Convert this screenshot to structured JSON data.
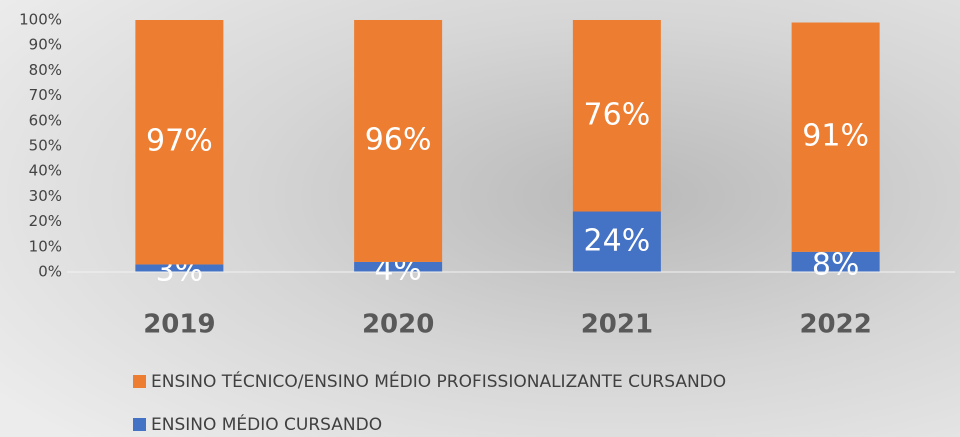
{
  "chart_data": {
    "type": "stacked_bar",
    "categories": [
      "2019",
      "2020",
      "2021",
      "2022"
    ],
    "series": [
      {
        "name": "ENSINO TÉCNICO/ENSINO MÉDIO PROFISSIONALIZANTE CURSANDO",
        "color": "#ed7d31",
        "values": [
          97,
          96,
          76,
          91
        ],
        "value_labels": [
          "97%",
          "96%",
          "76%",
          "91%"
        ]
      },
      {
        "name": "ENSINO MÉDIO CURSANDO",
        "color": "#4472c4",
        "values": [
          3,
          4,
          24,
          8
        ],
        "value_labels": [
          "3%",
          "4%",
          "24%",
          "8%"
        ]
      }
    ],
    "ylim": [
      0,
      100
    ],
    "yticks": [
      {
        "value": 0,
        "label": "0%"
      },
      {
        "value": 10,
        "label": "10%"
      },
      {
        "value": 20,
        "label": "20%"
      },
      {
        "value": 30,
        "label": "30%"
      },
      {
        "value": 40,
        "label": "40%"
      },
      {
        "value": 50,
        "label": "50%"
      },
      {
        "value": 60,
        "label": "60%"
      },
      {
        "value": 70,
        "label": "70%"
      },
      {
        "value": 80,
        "label": "80%"
      },
      {
        "value": 90,
        "label": "90%"
      },
      {
        "value": 100,
        "label": "100%"
      }
    ],
    "grid": false,
    "legend": "bottom"
  }
}
